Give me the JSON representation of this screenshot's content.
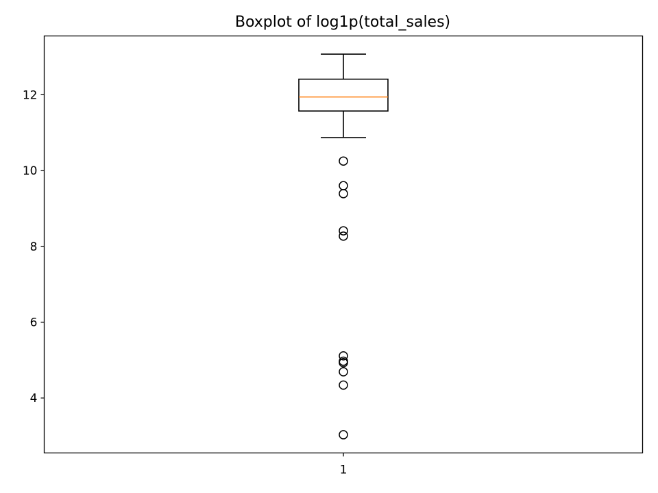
{
  "chart_data": {
    "type": "box",
    "title": "Boxplot of log1p(total_sales)",
    "xlabel": "",
    "ylabel": "",
    "categories": [
      "1"
    ],
    "ylim": [
      2.55,
      13.55
    ],
    "yticks": [
      4,
      6,
      8,
      10,
      12
    ],
    "ytick_labels": [
      "4",
      "6",
      "8",
      "10",
      "12"
    ],
    "grid": false,
    "legend": "none",
    "boxes": [
      {
        "category": "1",
        "whisker_low": 10.87,
        "q1": 11.57,
        "median": 11.94,
        "q3": 12.41,
        "whisker_high": 13.07,
        "outliers": [
          10.25,
          9.6,
          9.39,
          8.41,
          8.27,
          5.11,
          4.97,
          4.93,
          4.69,
          4.34,
          3.03
        ]
      }
    ],
    "colors": {
      "box": "#000000",
      "median": "#ff7f0e",
      "outlier": "#000000",
      "axes": "#000000"
    }
  }
}
